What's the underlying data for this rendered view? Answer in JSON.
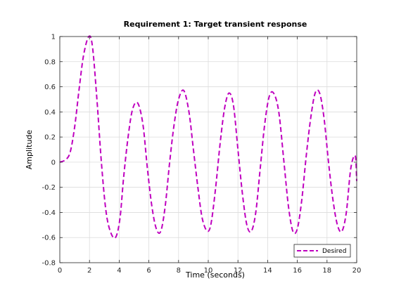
{
  "chart_data": {
    "type": "line",
    "title": "Requirement 1: Target transient response",
    "xlabel": "Time (seconds)",
    "ylabel": "Amplitude",
    "xlim": [
      0,
      20
    ],
    "ylim": [
      -0.8,
      1
    ],
    "xticks": [
      "0",
      "2",
      "4",
      "6",
      "8",
      "10",
      "12",
      "14",
      "16",
      "18",
      "20"
    ],
    "yticks": [
      "-0.8",
      "-0.6",
      "-0.4",
      "-0.2",
      "0",
      "0.2",
      "0.4",
      "0.6",
      "0.8",
      "1"
    ],
    "grid": true,
    "legend_position": "bottom-right",
    "series": [
      {
        "name": "Desired",
        "color": "#bf00bf",
        "line_style": "dashed",
        "x": [
          0,
          0.4,
          0.7,
          1.0,
          1.3,
          1.6,
          1.95,
          2.2,
          2.5,
          2.8,
          3.1,
          3.4,
          3.75,
          4.05,
          4.3,
          4.6,
          4.9,
          5.25,
          5.6,
          5.9,
          6.2,
          6.5,
          6.8,
          7.1,
          7.4,
          7.7,
          8.0,
          8.35,
          8.7,
          9.0,
          9.3,
          9.6,
          9.95,
          10.2,
          10.5,
          10.8,
          11.1,
          11.4,
          11.7,
          12.0,
          12.3,
          12.6,
          12.9,
          13.2,
          13.5,
          13.8,
          14.1,
          14.4,
          14.75,
          15.1,
          15.4,
          15.7,
          16.0,
          16.3,
          16.6,
          16.9,
          17.2,
          17.5,
          17.8,
          18.1,
          18.4,
          18.7,
          19.0,
          19.3,
          19.6,
          19.9,
          20.0
        ],
        "y": [
          0,
          0.02,
          0.08,
          0.28,
          0.58,
          0.85,
          1.0,
          0.92,
          0.5,
          0.0,
          -0.38,
          -0.55,
          -0.6,
          -0.45,
          -0.12,
          0.2,
          0.42,
          0.47,
          0.3,
          -0.05,
          -0.35,
          -0.53,
          -0.55,
          -0.35,
          0.0,
          0.3,
          0.5,
          0.57,
          0.4,
          0.1,
          -0.2,
          -0.45,
          -0.55,
          -0.48,
          -0.2,
          0.15,
          0.43,
          0.55,
          0.45,
          0.1,
          -0.25,
          -0.5,
          -0.55,
          -0.4,
          -0.05,
          0.3,
          0.52,
          0.55,
          0.4,
          0.0,
          -0.35,
          -0.55,
          -0.53,
          -0.3,
          0.05,
          0.35,
          0.55,
          0.55,
          0.35,
          0.0,
          -0.3,
          -0.5,
          -0.55,
          -0.4,
          -0.05,
          0.05,
          -0.15
        ]
      }
    ]
  }
}
